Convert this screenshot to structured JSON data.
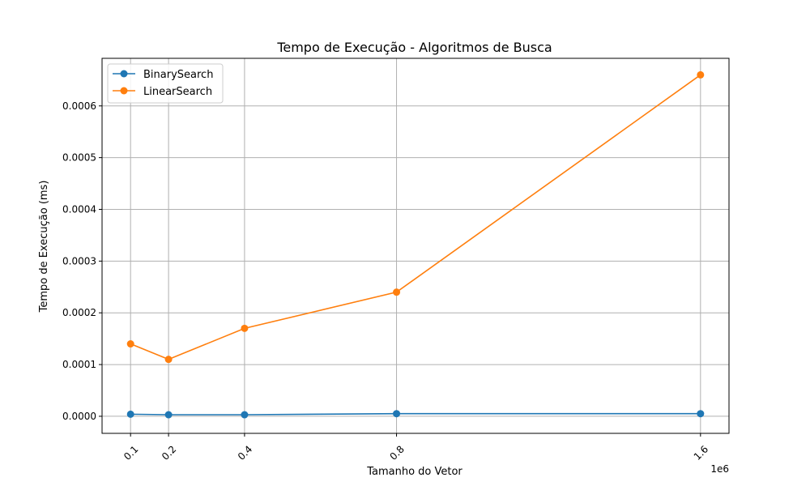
{
  "chart_data": {
    "type": "line",
    "title": "Tempo de Execução - Algoritmos de Busca",
    "xlabel": "Tamanho do Vetor",
    "ylabel": "Tempo de Execução (ms)",
    "x_offset_label": "1e6",
    "x": [
      100000,
      200000,
      400000,
      800000,
      1600000
    ],
    "x_tick_labels": [
      "0.1",
      "0.2",
      "0.4",
      "0.8",
      "1.6"
    ],
    "y_ticks": [
      0,
      0.0001,
      0.0002,
      0.0003,
      0.0004,
      0.0005,
      0.0006
    ],
    "y_tick_labels": [
      "0.0000",
      "0.0001",
      "0.0002",
      "0.0003",
      "0.0004",
      "0.0005",
      "0.0006"
    ],
    "xlim": [
      25000,
      1675000
    ],
    "ylim": [
      -3.3e-05,
      0.000692
    ],
    "grid": true,
    "legend_position": "top-left",
    "series": [
      {
        "name": "BinarySearch",
        "color": "#1f77b4",
        "marker": "circle",
        "values": [
          4e-06,
          3e-06,
          3e-06,
          5e-06,
          5e-06
        ]
      },
      {
        "name": "LinearSearch",
        "color": "#ff7f0e",
        "marker": "circle",
        "values": [
          0.00014,
          0.00011,
          0.00017,
          0.00024,
          0.00066
        ]
      }
    ]
  }
}
